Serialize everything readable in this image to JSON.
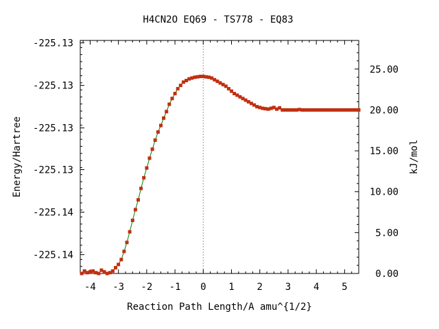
{
  "chart_data": {
    "type": "scatter",
    "title": "H4CN2O   EQ69 - TS778 - EQ83",
    "xlabel": "Reaction Path Length/A amu^{1/2}",
    "ylabel": "Energy/Hartree",
    "y2label": "kJ/mol",
    "xlim": [
      -4.35,
      5.5
    ],
    "x_ticks": [
      -4,
      -3,
      -2,
      -1,
      0,
      1,
      2,
      3,
      4,
      5
    ],
    "x_tick_labels": [
      "-4",
      "-3",
      "-2",
      "-1",
      "0",
      "1",
      "2",
      "3",
      "4",
      "5"
    ],
    "y2lim": [
      0.0,
      28.5
    ],
    "y2_ticks": [
      0,
      5,
      10,
      15,
      20,
      25
    ],
    "y2_tick_labels": [
      "0.00",
      "5.00",
      "10.00",
      "15.00",
      "20.00",
      "25.00"
    ],
    "y_tick_labels": [
      "-225.13",
      "-225.13",
      "-225.13",
      "-225.13",
      "-225.14",
      "-225.14"
    ],
    "y_tick_positions_kjmol": [
      28.2,
      23.0,
      17.8,
      12.7,
      7.5,
      2.3
    ],
    "ts_marker_x": 0,
    "grid": false,
    "legend": "none",
    "colors": {
      "marker": "#c03010",
      "line": "#008000",
      "ts_line": "#999999"
    },
    "series": [
      {
        "x": [
          -4.3,
          -4.2,
          -4.1,
          -4.0,
          -3.9,
          -3.8,
          -3.7,
          -3.6,
          -3.5,
          -3.4,
          -3.3,
          -3.2,
          -3.1,
          -3.0,
          -2.9,
          -2.8,
          -2.7,
          -2.6,
          -2.5,
          -2.4,
          -2.3,
          -2.2,
          -2.1,
          -2.0,
          -1.9,
          -1.8,
          -1.7,
          -1.6,
          -1.5,
          -1.4,
          -1.3,
          -1.2,
          -1.1,
          -1.0,
          -0.9,
          -0.8,
          -0.7,
          -0.6,
          -0.5,
          -0.4,
          -0.3,
          -0.2,
          -0.1,
          0.0,
          0.1,
          0.2,
          0.3,
          0.4,
          0.5,
          0.6,
          0.7,
          0.8,
          0.9,
          1.0,
          1.1,
          1.2,
          1.3,
          1.4,
          1.5,
          1.6,
          1.7,
          1.8,
          1.9,
          2.0,
          2.1,
          2.2,
          2.3,
          2.4,
          2.5,
          2.6,
          2.7,
          2.8,
          2.9,
          3.0,
          3.1,
          3.2,
          3.3,
          3.4,
          3.5,
          3.6,
          3.7,
          3.8,
          3.9,
          4.0,
          4.1,
          4.2,
          4.3,
          4.4,
          4.5,
          4.6,
          4.7,
          4.8,
          4.9,
          5.0,
          5.1,
          5.2,
          5.3,
          5.4,
          5.5
        ],
        "y": [
          0.0,
          0.3,
          0.1,
          0.2,
          0.3,
          0.1,
          0.0,
          0.4,
          0.2,
          0.0,
          0.1,
          0.3,
          0.7,
          1.1,
          1.7,
          2.7,
          3.8,
          5.1,
          6.5,
          7.8,
          9.0,
          10.4,
          11.7,
          12.9,
          14.1,
          15.2,
          16.3,
          17.3,
          18.1,
          19.0,
          19.8,
          20.7,
          21.4,
          22.0,
          22.6,
          23.0,
          23.4,
          23.6,
          23.8,
          23.9,
          24.0,
          24.05,
          24.1,
          24.1,
          24.05,
          24.0,
          23.9,
          23.7,
          23.5,
          23.3,
          23.1,
          22.9,
          22.6,
          22.3,
          22.0,
          21.8,
          21.6,
          21.4,
          21.2,
          21.0,
          20.8,
          20.6,
          20.4,
          20.3,
          20.2,
          20.15,
          20.1,
          20.2,
          20.3,
          20.1,
          20.25,
          20.0,
          20.0,
          20.0,
          20.0,
          20.0,
          20.0,
          20.05,
          20.0,
          20.0,
          20.0,
          20.0,
          20.0,
          20.0,
          20.0,
          20.0,
          20.0,
          20.0,
          20.0,
          20.0,
          20.0,
          20.0,
          20.0,
          20.0,
          20.0,
          20.0,
          20.0,
          20.0,
          20.0
        ]
      }
    ]
  }
}
